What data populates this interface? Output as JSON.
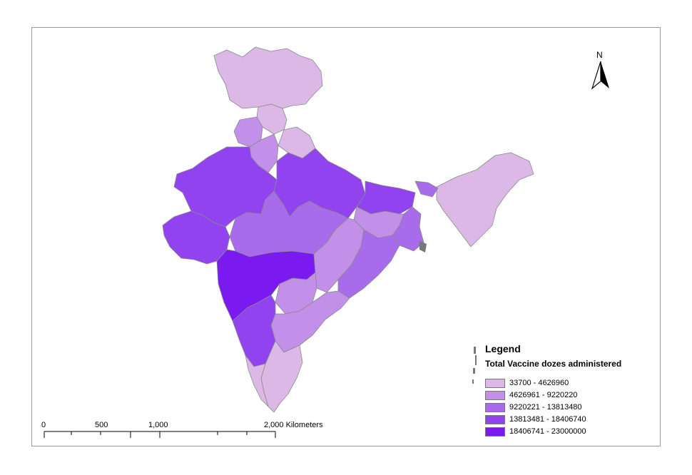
{
  "legend": {
    "title": "Legend",
    "subtitle": "Total Vaccine dozes administered",
    "classes": [
      {
        "label": "33700 - 4626960",
        "color": "#dcb8e6"
      },
      {
        "label": "4626961 - 9220220",
        "color": "#c28fe9"
      },
      {
        "label": "9220221 - 13813480",
        "color": "#a86bec"
      },
      {
        "label": "13813481 - 18406740",
        "color": "#9143ef"
      },
      {
        "label": "18406741 - 23000000",
        "color": "#7a1af0"
      }
    ]
  },
  "north_arrow": {
    "label": "N"
  },
  "scale_bar": {
    "labels": [
      "0",
      "500",
      "1,000",
      "2,000 Kilometers"
    ]
  },
  "regions": [
    {
      "class": 0
    },
    {
      "class": 0
    },
    {
      "class": 1
    },
    {
      "class": 1
    },
    {
      "class": 0
    },
    {
      "class": 3
    },
    {
      "class": 3
    },
    {
      "class": 3
    },
    {
      "class": 3
    },
    {
      "class": 2
    },
    {
      "class": 2
    },
    {
      "class": 1
    },
    {
      "class": 0
    },
    {
      "class": 2
    },
    {
      "class": 4
    },
    {
      "class": 1
    },
    {
      "class": 2
    },
    {
      "class": 1
    },
    {
      "class": 1
    },
    {
      "class": 0
    },
    {
      "class": 3
    },
    {
      "class": 0
    }
  ],
  "colors": {
    "border": "#8a8a8a",
    "frame": "#9a9a9a",
    "islands": "#777777"
  }
}
